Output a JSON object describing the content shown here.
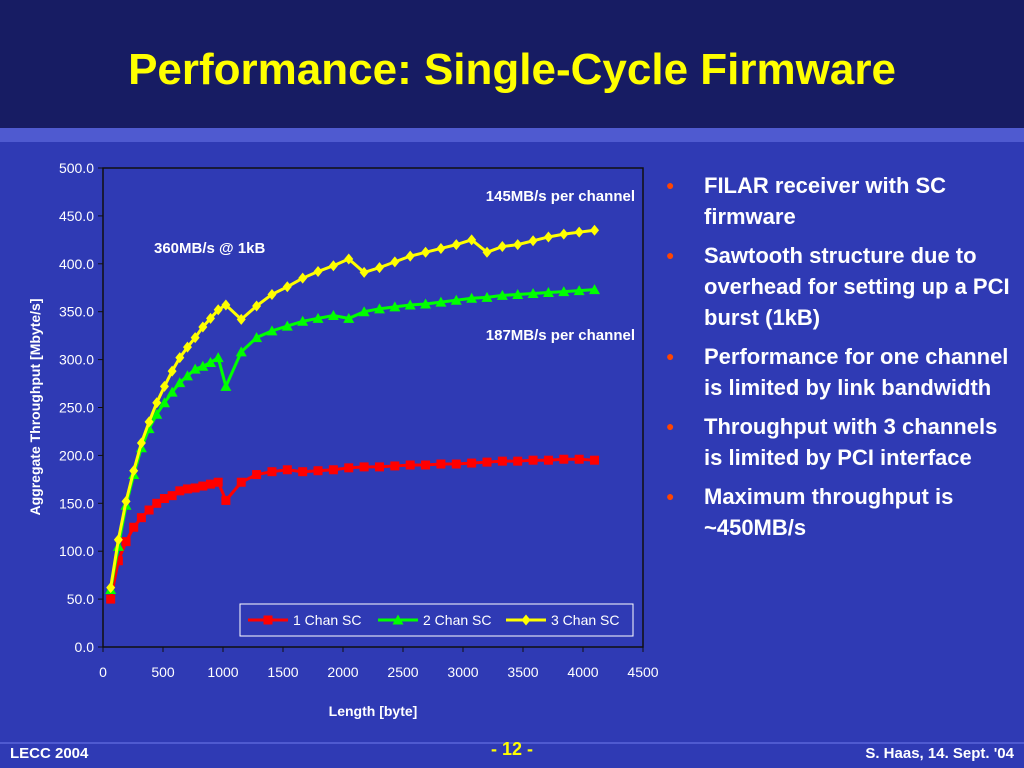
{
  "slide": {
    "title": "Performance: Single-Cycle Firmware",
    "footer_left": "LECC 2004",
    "footer_center": "- 12 -",
    "footer_right": "S. Haas, 14. Sept. '04"
  },
  "bullets": [
    "FILAR receiver with SC firmware",
    "Sawtooth structure due to overhead for setting up a PCI burst (1kB)",
    "Performance for one channel is limited by link bandwidth",
    "Throughput with 3 channels is limited by PCI interface",
    "Maximum throughput is ~450MB/s"
  ],
  "chart_data": {
    "type": "line",
    "xlabel": "Length [byte]",
    "ylabel": "Aggregate Throughput [Mbyte/s]",
    "xlim": [
      0,
      4500
    ],
    "ylim": [
      0,
      500
    ],
    "x_ticks": [
      0,
      500,
      1000,
      1500,
      2000,
      2500,
      3000,
      3500,
      4000,
      4500
    ],
    "y_ticks": [
      "0.0",
      "50.0",
      "100.0",
      "150.0",
      "200.0",
      "250.0",
      "300.0",
      "350.0",
      "400.0",
      "450.0",
      "500.0"
    ],
    "legend_position": "bottom-right",
    "grid": false,
    "annotations": [
      "145MB/s per channel",
      "360MB/s @ 1kB",
      "187MB/s per channel"
    ],
    "series": [
      {
        "name": "1 Chan SC",
        "color": "#ff0000",
        "marker": "square",
        "x": [
          64,
          128,
          192,
          256,
          320,
          384,
          448,
          512,
          576,
          640,
          704,
          768,
          832,
          896,
          960,
          1024,
          1152,
          1280,
          1408,
          1536,
          1664,
          1792,
          1920,
          2048,
          2176,
          2304,
          2432,
          2560,
          2688,
          2816,
          2944,
          3072,
          3200,
          3328,
          3456,
          3584,
          3712,
          3840,
          3968,
          4096
        ],
        "y": [
          50,
          90,
          110,
          125,
          135,
          143,
          150,
          155,
          158,
          163,
          165,
          166,
          168,
          170,
          172,
          153,
          172,
          180,
          183,
          185,
          183,
          184,
          185,
          187,
          188,
          188,
          189,
          190,
          190,
          191,
          191,
          192,
          193,
          194,
          194,
          195,
          195,
          196,
          196,
          195
        ]
      },
      {
        "name": "2 Chan SC",
        "color": "#00ff00",
        "marker": "triangle",
        "x": [
          64,
          128,
          192,
          256,
          320,
          384,
          448,
          512,
          576,
          640,
          704,
          768,
          832,
          896,
          960,
          1024,
          1152,
          1280,
          1408,
          1536,
          1664,
          1792,
          1920,
          2048,
          2176,
          2304,
          2432,
          2560,
          2688,
          2816,
          2944,
          3072,
          3200,
          3328,
          3456,
          3584,
          3712,
          3840,
          3968,
          4096
        ],
        "y": [
          60,
          105,
          148,
          180,
          208,
          228,
          243,
          255,
          266,
          276,
          283,
          290,
          293,
          297,
          302,
          272,
          308,
          323,
          330,
          335,
          340,
          343,
          346,
          343,
          350,
          353,
          355,
          357,
          358,
          360,
          362,
          364,
          365,
          367,
          368,
          369,
          370,
          371,
          372,
          373
        ]
      },
      {
        "name": "3 Chan SC",
        "color": "#ffff00",
        "marker": "diamond",
        "x": [
          64,
          128,
          192,
          256,
          320,
          384,
          448,
          512,
          576,
          640,
          704,
          768,
          832,
          896,
          960,
          1024,
          1152,
          1280,
          1408,
          1536,
          1664,
          1792,
          1920,
          2048,
          2176,
          2304,
          2432,
          2560,
          2688,
          2816,
          2944,
          3072,
          3200,
          3328,
          3456,
          3584,
          3712,
          3840,
          3968,
          4096
        ],
        "y": [
          62,
          112,
          152,
          184,
          213,
          235,
          255,
          272,
          288,
          302,
          313,
          323,
          334,
          343,
          352,
          357,
          342,
          356,
          368,
          376,
          385,
          392,
          398,
          405,
          391,
          396,
          402,
          408,
          412,
          416,
          420,
          425,
          412,
          418,
          420,
          424,
          428,
          431,
          433,
          435
        ]
      }
    ]
  }
}
